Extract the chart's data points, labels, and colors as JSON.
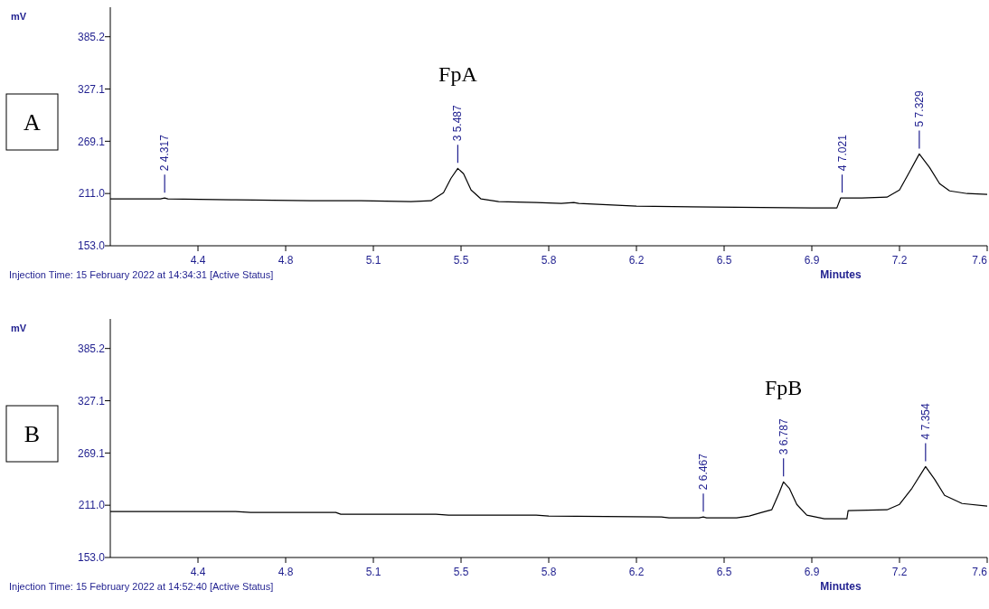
{
  "chart_data": [
    {
      "type": "line",
      "title": "A",
      "xlabel": "Minutes",
      "ylabel": "mV",
      "xlim": [
        4.1,
        7.6
      ],
      "xticks": [
        {
          "value": 4.45,
          "label": "4.4"
        },
        {
          "value": 4.8,
          "label": "4.8"
        },
        {
          "value": 5.15,
          "label": "5.1"
        },
        {
          "value": 5.5,
          "label": "5.5"
        },
        {
          "value": 5.85,
          "label": "5.8"
        },
        {
          "value": 6.2,
          "label": "6.2"
        },
        {
          "value": 6.55,
          "label": "6.5"
        },
        {
          "value": 6.9,
          "label": "6.9"
        },
        {
          "value": 7.25,
          "label": "7.2"
        },
        {
          "value": 7.6,
          "label": "7.6"
        }
      ],
      "ylim": [
        153,
        418
      ],
      "yticks": [
        {
          "value": 153,
          "label": "153.0"
        },
        {
          "value": 211.05,
          "label": "211.0"
        },
        {
          "value": 269.1,
          "label": "269.1"
        },
        {
          "value": 327.15,
          "label": "327.1"
        },
        {
          "value": 385.2,
          "label": "385.2"
        }
      ],
      "marker": "none",
      "line_style": "solid",
      "grid": false,
      "series": [
        {
          "color": "#000000",
          "x": [
            4.1,
            4.3,
            4.317,
            4.33,
            4.6,
            4.9,
            5.1,
            5.3,
            5.38,
            5.43,
            5.46,
            5.487,
            5.51,
            5.54,
            5.58,
            5.65,
            5.8,
            5.9,
            5.95,
            5.97,
            6.2,
            6.5,
            6.9,
            7.0,
            7.015,
            7.1,
            7.2,
            7.25,
            7.29,
            7.329,
            7.37,
            7.41,
            7.45,
            7.52,
            7.6
          ],
          "values": [
            205,
            205,
            206,
            205,
            204,
            203,
            203,
            202,
            203,
            212,
            228,
            239,
            233,
            215,
            205,
            202,
            201,
            200,
            201,
            200,
            197,
            196,
            195,
            195,
            206,
            206,
            207,
            215,
            235,
            255,
            240,
            222,
            214,
            211,
            210
          ]
        }
      ],
      "annotations": [
        {
          "text": "2 4.317",
          "x": 4.317,
          "y": 206
        },
        "FpA",
        {
          "text": "3 5.487",
          "x": 5.487,
          "y": 239
        },
        {
          "text": "4 7.021",
          "x": 7.021,
          "y": 206
        },
        {
          "text": "5 7.329",
          "x": 7.329,
          "y": 255
        },
        "Injection Time: 15 February 2022 at 14:34:31  [Active Status]"
      ]
    },
    {
      "type": "line",
      "title": "B",
      "xlabel": "Minutes",
      "ylabel": "mV",
      "xlim": [
        4.1,
        7.6
      ],
      "xticks": [
        {
          "value": 4.45,
          "label": "4.4"
        },
        {
          "value": 4.8,
          "label": "4.8"
        },
        {
          "value": 5.15,
          "label": "5.1"
        },
        {
          "value": 5.5,
          "label": "5.5"
        },
        {
          "value": 5.85,
          "label": "5.8"
        },
        {
          "value": 6.2,
          "label": "6.2"
        },
        {
          "value": 6.55,
          "label": "6.5"
        },
        {
          "value": 6.9,
          "label": "6.9"
        },
        {
          "value": 7.25,
          "label": "7.2"
        },
        {
          "value": 7.6,
          "label": "7.6"
        }
      ],
      "ylim": [
        153,
        418
      ],
      "yticks": [
        {
          "value": 153,
          "label": "153.0"
        },
        {
          "value": 211.05,
          "label": "211.0"
        },
        {
          "value": 269.1,
          "label": "269.1"
        },
        {
          "value": 327.15,
          "label": "327.1"
        },
        {
          "value": 385.2,
          "label": "385.2"
        }
      ],
      "marker": "none",
      "line_style": "solid",
      "grid": false,
      "series": [
        {
          "color": "#000000",
          "x": [
            4.1,
            4.6,
            4.66,
            5.0,
            5.02,
            5.4,
            5.45,
            5.8,
            5.85,
            6.3,
            6.33,
            6.45,
            6.467,
            6.48,
            6.6,
            6.65,
            6.7,
            6.74,
            6.77,
            6.787,
            6.81,
            6.84,
            6.88,
            6.95,
            7.04,
            7.045,
            7.2,
            7.25,
            7.3,
            7.354,
            7.39,
            7.43,
            7.5,
            7.6
          ],
          "values": [
            204,
            204,
            203,
            203,
            201,
            201,
            200,
            200,
            199,
            198,
            197,
            197,
            198,
            197,
            197,
            199,
            203,
            206,
            225,
            237,
            230,
            212,
            200,
            196,
            196,
            205,
            206,
            212,
            230,
            254,
            240,
            222,
            213,
            210
          ]
        }
      ],
      "annotations": [
        {
          "text": "2 6.467",
          "x": 6.467,
          "y": 198
        },
        "FpB",
        {
          "text": "3 6.787",
          "x": 6.787,
          "y": 237
        },
        {
          "text": "4 7.354",
          "x": 7.354,
          "y": 254
        },
        "Injection Time: 15 February 2022 at 14:52:40  [Active Status]"
      ]
    }
  ]
}
